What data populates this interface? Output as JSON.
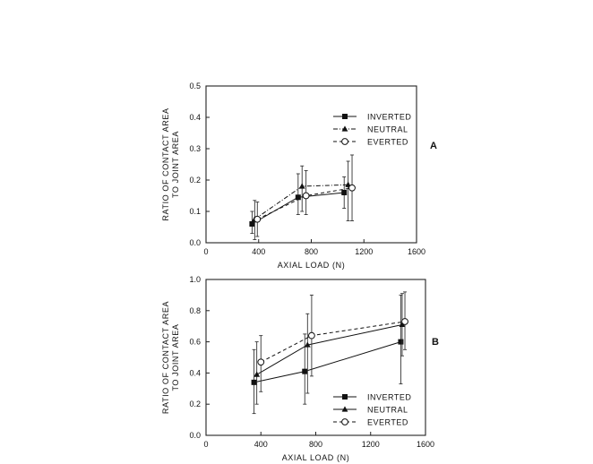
{
  "chart_data": [
    {
      "type": "line",
      "panel_label": "A",
      "xlabel": "AXIAL LOAD (N)",
      "ylabel_lines": [
        "RATIO OF CONTACT AREA",
        "TO JOINT AREA"
      ],
      "xlim": [
        0,
        1600
      ],
      "ylim": [
        0,
        0.5
      ],
      "x_ticks": [
        0,
        400,
        800,
        1200,
        1600
      ],
      "y_ticks": [
        0.0,
        0.1,
        0.2,
        0.3,
        0.4,
        0.5
      ],
      "x_tick_labels": [
        "0",
        "400",
        "800",
        "1200",
        "1600"
      ],
      "y_tick_labels": [
        "0.0",
        "0.1",
        "0.2",
        "0.3",
        "0.4",
        "0.5"
      ],
      "legend_position": "upper-right",
      "series": [
        {
          "name": "INVERTED",
          "marker": "square",
          "line": "solid",
          "x": [
            350,
            700,
            1050
          ],
          "y": [
            0.06,
            0.145,
            0.16
          ],
          "err_low": [
            0.03,
            0.09,
            0.11
          ],
          "err_high": [
            0.1,
            0.22,
            0.21
          ]
        },
        {
          "name": "NEUTRAL",
          "marker": "triangle",
          "line": "dash-dot",
          "x": [
            370,
            730,
            1080
          ],
          "y": [
            0.075,
            0.18,
            0.185
          ],
          "err_low": [
            0.01,
            0.1,
            0.07
          ],
          "err_high": [
            0.135,
            0.245,
            0.26
          ]
        },
        {
          "name": "EVERTED",
          "marker": "circle",
          "line": "dashed",
          "x": [
            390,
            760,
            1110
          ],
          "y": [
            0.075,
            0.15,
            0.175
          ],
          "err_low": [
            0.02,
            0.09,
            0.07
          ],
          "err_high": [
            0.13,
            0.23,
            0.28
          ]
        }
      ]
    },
    {
      "type": "line",
      "panel_label": "B",
      "xlabel": "AXIAL LOAD (N)",
      "ylabel_lines": [
        "RATIO OF CONTACT AREA",
        "TO JOINT AREA"
      ],
      "xlim": [
        0,
        1600
      ],
      "ylim": [
        0,
        1.0
      ],
      "x_ticks": [
        0,
        400,
        800,
        1200,
        1600
      ],
      "y_ticks": [
        0.0,
        0.2,
        0.4,
        0.6,
        0.8,
        1.0
      ],
      "x_tick_labels": [
        "0",
        "400",
        "800",
        "1200",
        "1600"
      ],
      "y_tick_labels": [
        "0.0",
        "0.2",
        "0.4",
        "0.6",
        "0.8",
        "1.0"
      ],
      "legend_position": "lower-right",
      "series": [
        {
          "name": "INVERTED",
          "marker": "square",
          "line": "solid",
          "x": [
            350,
            720,
            1420
          ],
          "y": [
            0.34,
            0.41,
            0.6
          ],
          "err_low": [
            0.14,
            0.2,
            0.33
          ],
          "err_high": [
            0.55,
            0.65,
            0.9
          ]
        },
        {
          "name": "NEUTRAL",
          "marker": "triangle",
          "line": "solid",
          "x": [
            370,
            740,
            1430
          ],
          "y": [
            0.39,
            0.58,
            0.71
          ],
          "err_low": [
            0.2,
            0.27,
            0.51
          ],
          "err_high": [
            0.6,
            0.78,
            0.91
          ]
        },
        {
          "name": "EVERTED",
          "marker": "circle",
          "line": "dashed",
          "x": [
            400,
            770,
            1450
          ],
          "y": [
            0.47,
            0.64,
            0.73
          ],
          "err_low": [
            0.28,
            0.38,
            0.55
          ],
          "err_high": [
            0.64,
            0.9,
            0.92
          ]
        }
      ]
    }
  ]
}
